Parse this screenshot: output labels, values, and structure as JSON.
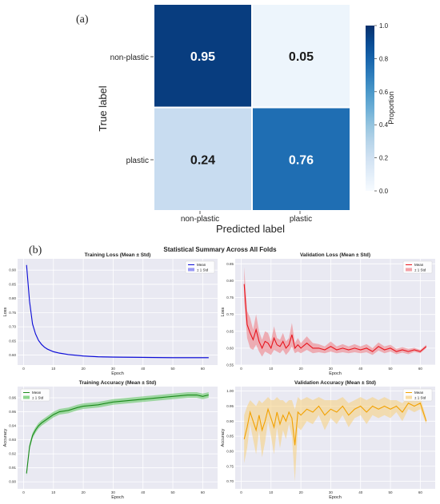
{
  "panel_a_label": "(a)",
  "panel_b_label": "(b)",
  "confusion": {
    "ylabel": "True label",
    "xlabel": "Predicted label",
    "row_labels": [
      "non-plastic",
      "plastic"
    ],
    "col_labels": [
      "non-plastic",
      "plastic"
    ],
    "cbar_label": "Proportion",
    "cbar_ticks": [
      "0.0",
      "0.2",
      "0.4",
      "0.6",
      "0.8",
      "1.0"
    ],
    "cells": [
      [
        "0.95",
        "0.05"
      ],
      [
        "0.24",
        "0.76"
      ]
    ]
  },
  "summary_title": "Statistical Summary Across All Folds",
  "chart_data": [
    {
      "type": "heatmap",
      "rows": [
        "non-plastic",
        "plastic"
      ],
      "cols": [
        "non-plastic",
        "plastic"
      ],
      "values": [
        [
          0.95,
          0.05
        ],
        [
          0.24,
          0.76
        ]
      ],
      "xlabel": "Predicted label",
      "ylabel": "True label",
      "colorbar": {
        "label": "Proportion",
        "range": [
          0,
          1
        ]
      },
      "colors": {
        "low": "#f7fbff",
        "high": "#08306b"
      }
    },
    {
      "type": "line",
      "title": "Training Loss (Mean ± Std)",
      "xlabel": "Epoch",
      "ylabel": "Loss",
      "xlim": [
        -2,
        65
      ],
      "ylim": [
        0.565,
        0.94
      ],
      "xticks": [
        0,
        10,
        20,
        30,
        40,
        50,
        60
      ],
      "yticks": [
        0.6,
        0.65,
        0.7,
        0.75,
        0.8,
        0.85,
        0.9
      ],
      "ytick_labels": [
        "0.60",
        "0.65",
        "0.70",
        "0.75",
        "0.80",
        "0.85",
        "0.90"
      ],
      "color": "#0b0bd6",
      "band_color": "#6f6ff0",
      "legend": [
        "Mean",
        "± 1 Std"
      ],
      "legend_position": "top-right",
      "grid": true,
      "x": [
        1,
        2,
        3,
        4,
        5,
        6,
        7,
        8,
        10,
        12,
        15,
        20,
        25,
        30,
        40,
        50,
        62
      ],
      "mean": [
        0.918,
        0.79,
        0.71,
        0.675,
        0.652,
        0.638,
        0.628,
        0.621,
        0.612,
        0.607,
        0.602,
        0.597,
        0.594,
        0.593,
        0.592,
        0.591,
        0.591
      ],
      "std": [
        0.006,
        0.006,
        0.005,
        0.004,
        0.003,
        0.003,
        0.002,
        0.002,
        0.002,
        0.002,
        0.002,
        0.002,
        0.002,
        0.002,
        0.002,
        0.002,
        0.002
      ]
    },
    {
      "type": "line",
      "title": "Validation Loss (Mean ± Std)",
      "xlabel": "Epoch",
      "ylabel": "Loss",
      "xlim": [
        -2,
        65
      ],
      "ylim": [
        0.55,
        0.865
      ],
      "xticks": [
        0,
        10,
        20,
        30,
        40,
        50,
        60
      ],
      "yticks": [
        0.55,
        0.6,
        0.65,
        0.7,
        0.75,
        0.8,
        0.85
      ],
      "ytick_labels": [
        "0.55",
        "0.60",
        "0.65",
        "0.70",
        "0.75",
        "0.80",
        "0.85"
      ],
      "color": "#e8141d",
      "band_color": "#f07a80",
      "legend": [
        "Mean",
        "± 1 Std"
      ],
      "legend_position": "top-right",
      "grid": true,
      "x": [
        1,
        2,
        3,
        4,
        5,
        6,
        7,
        8,
        9,
        10,
        11,
        12,
        13,
        14,
        15,
        16,
        17,
        18,
        19,
        20,
        22,
        24,
        26,
        28,
        30,
        32,
        34,
        36,
        38,
        40,
        42,
        44,
        46,
        48,
        50,
        52,
        54,
        56,
        58,
        60,
        62
      ],
      "mean": [
        0.79,
        0.67,
        0.645,
        0.625,
        0.655,
        0.62,
        0.6,
        0.62,
        0.615,
        0.6,
        0.63,
        0.61,
        0.605,
        0.62,
        0.6,
        0.61,
        0.64,
        0.6,
        0.61,
        0.6,
        0.615,
        0.6,
        0.6,
        0.595,
        0.605,
        0.595,
        0.6,
        0.595,
        0.6,
        0.595,
        0.6,
        0.59,
        0.605,
        0.595,
        0.6,
        0.59,
        0.595,
        0.59,
        0.595,
        0.59,
        0.605
      ],
      "std": [
        0.05,
        0.04,
        0.045,
        0.03,
        0.045,
        0.03,
        0.025,
        0.03,
        0.03,
        0.02,
        0.035,
        0.02,
        0.02,
        0.025,
        0.02,
        0.02,
        0.035,
        0.015,
        0.02,
        0.015,
        0.02,
        0.015,
        0.012,
        0.01,
        0.015,
        0.01,
        0.012,
        0.01,
        0.012,
        0.01,
        0.012,
        0.01,
        0.012,
        0.01,
        0.01,
        0.008,
        0.008,
        0.008,
        0.006,
        0.005,
        0.005
      ]
    },
    {
      "type": "line",
      "title": "Training Accuracy (Mean ± Std)",
      "xlabel": "Epoch",
      "ylabel": "Accuracy",
      "xlim": [
        -2,
        65
      ],
      "ylim": [
        0.895,
        0.968
      ],
      "xticks": [
        0,
        10,
        20,
        30,
        40,
        50,
        60
      ],
      "yticks": [
        0.9,
        0.91,
        0.92,
        0.93,
        0.94,
        0.95,
        0.96
      ],
      "ytick_labels": [
        "0.90",
        "0.91",
        "0.92",
        "0.93",
        "0.94",
        "0.95",
        "0.96"
      ],
      "color": "#1a8a1a",
      "band_color": "#5cc45c",
      "legend": [
        "Mean",
        "± 1 Std"
      ],
      "legend_position": "top-left",
      "grid": true,
      "x": [
        1,
        2,
        3,
        4,
        5,
        6,
        8,
        10,
        12,
        15,
        18,
        20,
        25,
        30,
        35,
        40,
        45,
        50,
        55,
        58,
        60,
        62
      ],
      "mean": [
        0.906,
        0.925,
        0.933,
        0.937,
        0.94,
        0.942,
        0.945,
        0.948,
        0.95,
        0.951,
        0.953,
        0.954,
        0.955,
        0.957,
        0.958,
        0.959,
        0.96,
        0.961,
        0.962,
        0.962,
        0.961,
        0.962
      ],
      "std": [
        0.002,
        0.002,
        0.002,
        0.002,
        0.002,
        0.002,
        0.002,
        0.002,
        0.002,
        0.002,
        0.002,
        0.002,
        0.002,
        0.002,
        0.002,
        0.002,
        0.002,
        0.002,
        0.002,
        0.002,
        0.002,
        0.002
      ]
    },
    {
      "type": "line",
      "title": "Validation Accuracy (Mean ± Std)",
      "xlabel": "Epoch",
      "ylabel": "Accuracy",
      "xlim": [
        -2,
        65
      ],
      "ylim": [
        0.675,
        1.015
      ],
      "xticks": [
        0,
        10,
        20,
        30,
        40,
        50,
        60
      ],
      "yticks": [
        0.7,
        0.75,
        0.8,
        0.85,
        0.9,
        0.95,
        1.0
      ],
      "ytick_labels": [
        "0.70",
        "0.75",
        "0.80",
        "0.85",
        "0.90",
        "0.95",
        "1.00"
      ],
      "color": "#f2a100",
      "band_color": "#f8cf7a",
      "legend": [
        "Mean",
        "± 1 Std"
      ],
      "legend_position": "top-right",
      "grid": true,
      "x": [
        1,
        2,
        3,
        4,
        5,
        6,
        7,
        8,
        9,
        10,
        11,
        12,
        13,
        14,
        15,
        16,
        17,
        18,
        19,
        20,
        22,
        24,
        26,
        28,
        30,
        32,
        34,
        36,
        38,
        40,
        42,
        44,
        46,
        48,
        50,
        52,
        54,
        56,
        58,
        60,
        62
      ],
      "mean": [
        0.84,
        0.88,
        0.93,
        0.9,
        0.87,
        0.92,
        0.87,
        0.9,
        0.94,
        0.91,
        0.88,
        0.93,
        0.89,
        0.92,
        0.9,
        0.93,
        0.91,
        0.82,
        0.93,
        0.92,
        0.94,
        0.93,
        0.95,
        0.92,
        0.94,
        0.93,
        0.95,
        0.92,
        0.94,
        0.95,
        0.93,
        0.95,
        0.94,
        0.95,
        0.94,
        0.95,
        0.93,
        0.96,
        0.95,
        0.96,
        0.9
      ],
      "std": [
        0.08,
        0.07,
        0.04,
        0.06,
        0.08,
        0.05,
        0.09,
        0.07,
        0.04,
        0.06,
        0.09,
        0.05,
        0.08,
        0.05,
        0.06,
        0.04,
        0.06,
        0.12,
        0.05,
        0.05,
        0.04,
        0.04,
        0.03,
        0.05,
        0.03,
        0.04,
        0.03,
        0.04,
        0.03,
        0.03,
        0.04,
        0.03,
        0.03,
        0.03,
        0.03,
        0.02,
        0.03,
        0.02,
        0.02,
        0.02,
        0.01
      ]
    }
  ]
}
